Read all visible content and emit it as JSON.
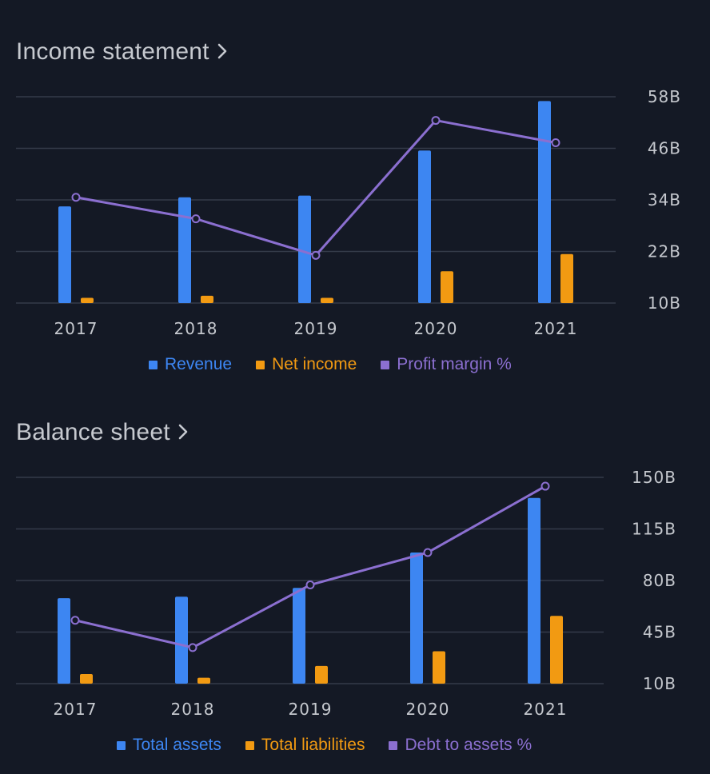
{
  "colors": {
    "background": "#141925",
    "series1": "#3d86f2",
    "series2": "#f29a12",
    "line": "#8b6fd0",
    "grid": "#343b49",
    "text": "#c5c8ce"
  },
  "icons": {
    "section_link": "chevron-right-icon"
  },
  "income": {
    "title": "Income statement",
    "legend": [
      "Revenue",
      "Net income",
      "Profit margin %"
    ]
  },
  "balance": {
    "title": "Balance sheet",
    "legend": [
      "Total assets",
      "Total liabilities",
      "Debt to assets %"
    ]
  },
  "chart_data": [
    {
      "type": "bar",
      "title": "Income statement",
      "categories": [
        "2017",
        "2018",
        "2019",
        "2020",
        "2021"
      ],
      "y_ticks": [
        "10B",
        "22B",
        "34B",
        "46B",
        "58B"
      ],
      "ylim": [
        10,
        58
      ],
      "grid": true,
      "legend_position": "bottom",
      "series": [
        {
          "name": "Revenue",
          "kind": "bar",
          "values": [
            32.5,
            34.6,
            35.0,
            45.5,
            57.0
          ]
        },
        {
          "name": "Net income",
          "kind": "bar",
          "values": [
            11.2,
            11.7,
            11.2,
            17.4,
            21.4
          ]
        },
        {
          "name": "Profit margin %",
          "kind": "line",
          "values": [
            34.6,
            29.6,
            21.1,
            52.5,
            47.3
          ]
        }
      ]
    },
    {
      "type": "bar",
      "title": "Balance sheet",
      "categories": [
        "2017",
        "2018",
        "2019",
        "2020",
        "2021"
      ],
      "y_ticks": [
        "10B",
        "45B",
        "80B",
        "115B",
        "150B"
      ],
      "ylim": [
        10,
        150
      ],
      "grid": true,
      "legend_position": "bottom",
      "series": [
        {
          "name": "Total assets",
          "kind": "bar",
          "values": [
            68,
            69,
            75,
            99,
            136
          ]
        },
        {
          "name": "Total liabilities",
          "kind": "bar",
          "values": [
            16.5,
            14,
            22,
            32,
            56
          ]
        },
        {
          "name": "Debt to assets %",
          "kind": "line",
          "values": [
            53,
            34.5,
            77,
            99,
            144
          ]
        }
      ]
    }
  ]
}
